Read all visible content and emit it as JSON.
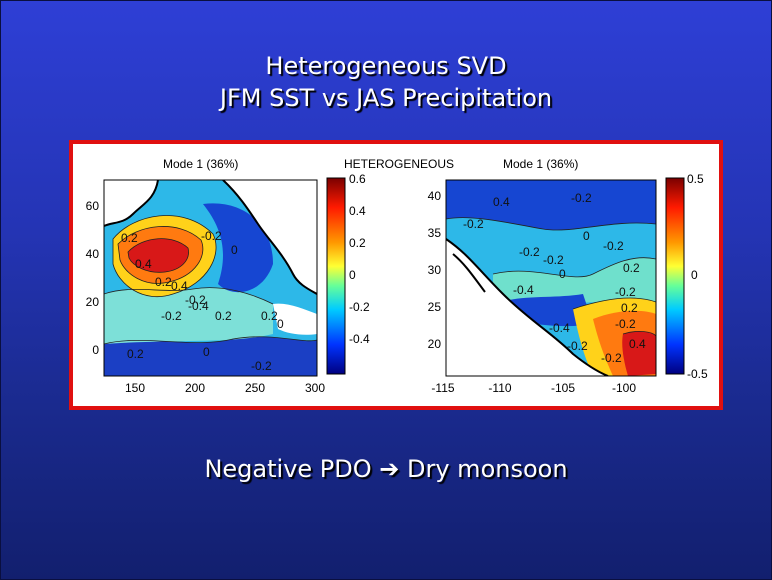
{
  "slide": {
    "title_line1": "Heterogeneous SVD",
    "title_line2": "JFM SST vs JAS Precipitation",
    "subtitle_pre": "Negative PDO ",
    "subtitle_arrow": "➔",
    "subtitle_post": " Dry monsoon"
  },
  "figure": {
    "left_header": "Mode 1 (36%)",
    "center_header": "HETEROGENEOUS",
    "right_header": "Mode 1 (36%)",
    "left_map": {
      "y_ticks": [
        "60",
        "40",
        "20",
        "0"
      ],
      "x_ticks": [
        "150",
        "200",
        "250",
        "300"
      ],
      "colorbar_ticks": [
        "0.6",
        "0.4",
        "0.2",
        "0",
        "-0.2",
        "-0.4"
      ],
      "contour_labels": [
        "0.4",
        "0.2",
        "0.4",
        "0.2",
        "-0.2",
        "0",
        "-0.2",
        "-0.2",
        "0.2",
        "0",
        "-0.4",
        "0.2",
        "-0.2",
        "0",
        "0.2"
      ]
    },
    "right_map": {
      "y_ticks": [
        "40",
        "35",
        "30",
        "25",
        "20"
      ],
      "x_ticks": [
        "-115",
        "-110",
        "-105",
        "-100"
      ],
      "colorbar_ticks": [
        "0.5",
        "0",
        "-0.5"
      ],
      "contour_labels": [
        "0.4",
        "-0.2",
        "-0.2",
        "-0.2",
        "0",
        "-0.2",
        "0.2",
        "-0.4",
        "0",
        "-0.2",
        "0.2",
        "-0.4",
        "-0.2",
        "-0.2",
        "0.4",
        "-0.2",
        "-0.2"
      ]
    },
    "colors": {
      "frame_border": "#e01010",
      "positive": "#d01818",
      "negative": "#1a3cc8",
      "land": "#ffffff"
    }
  }
}
